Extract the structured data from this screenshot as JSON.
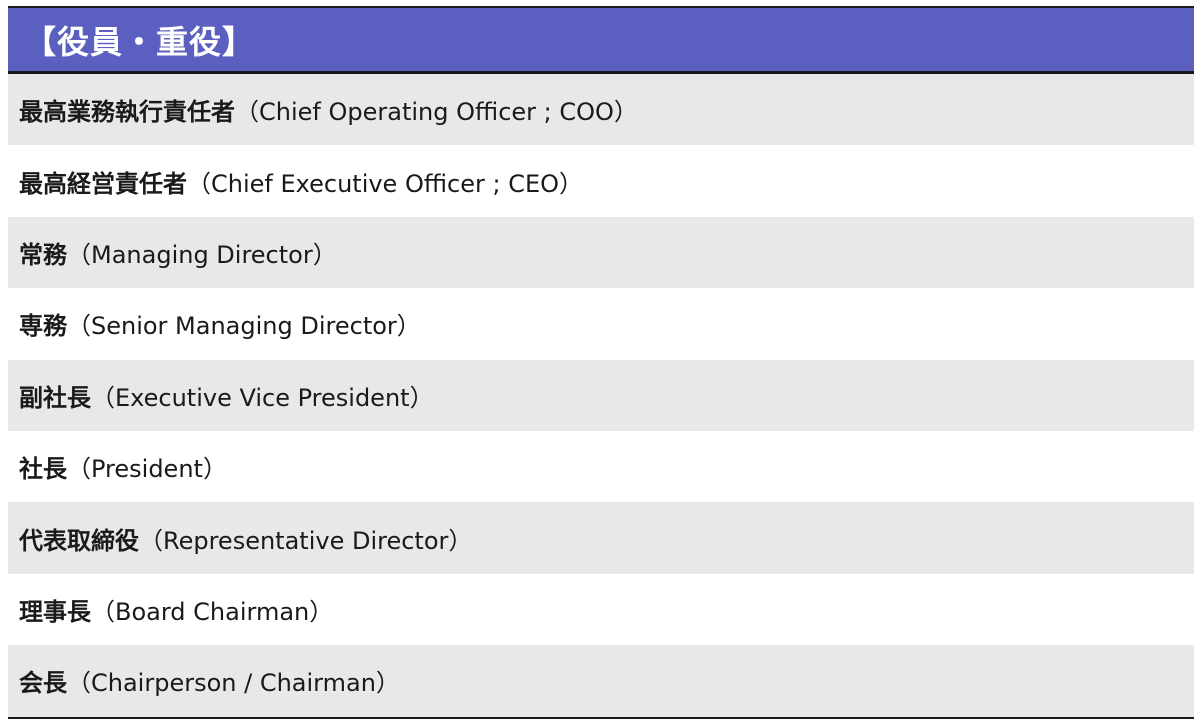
{
  "header": {
    "title": "【役員・重役】",
    "background": "#5b5fbf"
  },
  "rows": [
    {
      "jp": "最高業務執行責任者",
      "en": "（Chief Operating Officer ; COO）"
    },
    {
      "jp": "最高経営責任者",
      "en": "（Chief Executive Officer ; CEO）"
    },
    {
      "jp": "常務",
      "en": "（Managing Director）"
    },
    {
      "jp": "専務",
      "en": "（Senior Managing Director）"
    },
    {
      "jp": "副社長",
      "en": "（Executive Vice President）"
    },
    {
      "jp": "社長",
      "en": "（President）"
    },
    {
      "jp": "代表取締役",
      "en": "（Representative Director）"
    },
    {
      "jp": "理事長",
      "en": "（Board Chairman）"
    },
    {
      "jp": "会長",
      "en": "（Chairperson / Chairman）"
    }
  ],
  "colors": {
    "row_shaded": "#e8e8e8",
    "row_plain": "#ffffff",
    "border": "#1a1a1a"
  }
}
